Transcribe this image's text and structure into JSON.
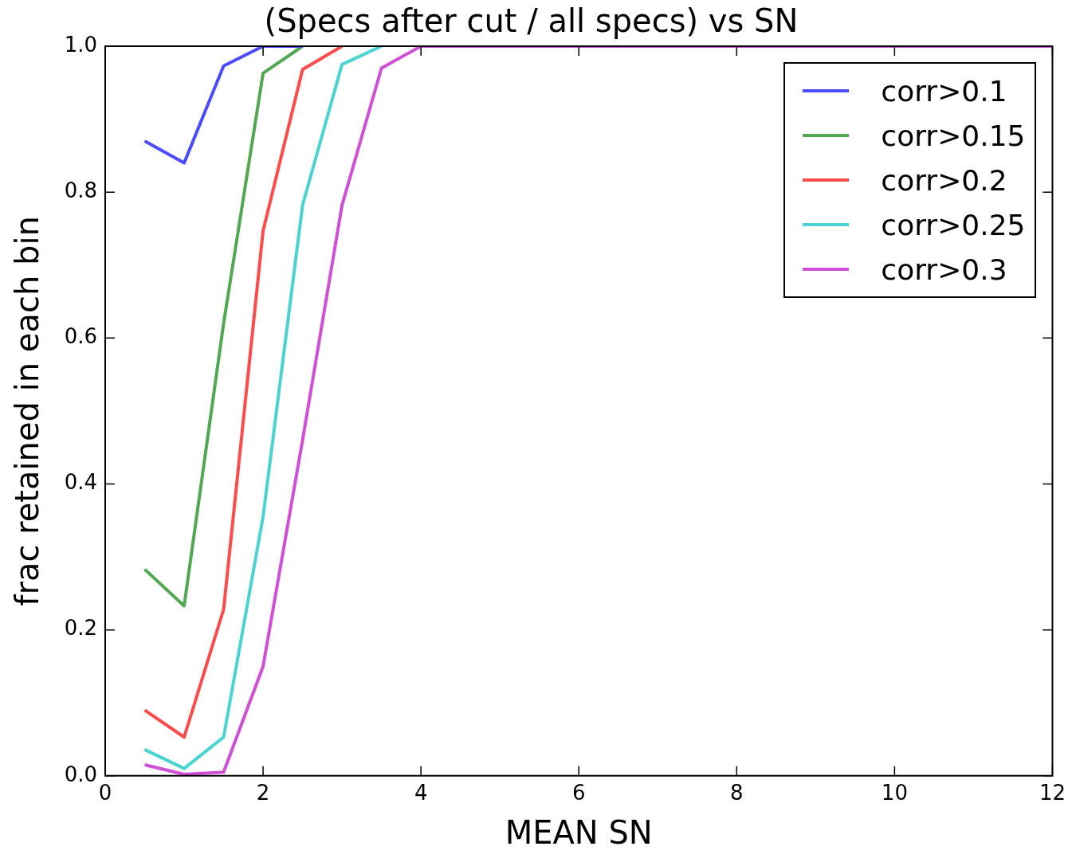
{
  "chart_data": {
    "type": "line",
    "title": "(Specs after cut / all specs) vs SN",
    "xlabel": "MEAN SN",
    "ylabel": "frac retained in each bin",
    "x": [
      0.5,
      1,
      1.5,
      2,
      2.5,
      3,
      3.5,
      4,
      4.5,
      5,
      5.5,
      6,
      6.5,
      7,
      7.5,
      8,
      8.5,
      9,
      9.5,
      10,
      10.5,
      11,
      11.5,
      12
    ],
    "series": [
      {
        "name": "corr>0.1",
        "color": "#4b4bff",
        "values": [
          0.87,
          0.84,
          0.973,
          1,
          1,
          null,
          null,
          null,
          null,
          null,
          null,
          null,
          null,
          null,
          null,
          null,
          null,
          null,
          null,
          null,
          null,
          null,
          null,
          null
        ]
      },
      {
        "name": "corr>0.15",
        "color": "#52a852",
        "values": [
          0.283,
          0.233,
          0.62,
          0.963,
          1,
          null,
          null,
          null,
          null,
          null,
          null,
          null,
          null,
          null,
          null,
          null,
          null,
          null,
          null,
          null,
          null,
          null,
          null,
          null
        ]
      },
      {
        "name": "corr>0.2",
        "color": "#ff4b4b",
        "values": [
          0.09,
          0.053,
          0.228,
          0.747,
          0.968,
          1,
          null,
          null,
          null,
          null,
          null,
          null,
          null,
          null,
          null,
          null,
          null,
          null,
          null,
          null,
          null,
          null,
          null,
          null
        ]
      },
      {
        "name": "corr>0.25",
        "color": "#4bd3d3",
        "values": [
          0.036,
          0.01,
          0.053,
          0.355,
          0.782,
          0.975,
          1,
          null,
          null,
          null,
          null,
          null,
          null,
          null,
          null,
          null,
          null,
          null,
          null,
          null,
          null,
          null,
          null,
          null
        ]
      },
      {
        "name": "corr>0.3",
        "color": "#cf4fd6",
        "values": [
          0.015,
          0.002,
          0.005,
          0.15,
          0.46,
          0.782,
          0.97,
          1,
          1,
          1,
          1,
          1,
          1,
          1,
          1,
          1,
          1,
          1,
          1,
          1,
          1,
          1,
          1,
          1
        ]
      }
    ],
    "xlim": [
      0,
      12
    ],
    "xticks": [
      0,
      2,
      4,
      6,
      8,
      10,
      12
    ],
    "ylim": [
      0,
      1
    ],
    "yticks": [
      {
        "value": 0,
        "label": "0.0"
      },
      {
        "value": 0.2,
        "label": "0.2"
      },
      {
        "value": 0.4,
        "label": "0.4"
      },
      {
        "value": 0.6,
        "label": "0.6"
      },
      {
        "value": 0.8,
        "label": "0.8"
      },
      {
        "value": 1,
        "label": "1.0"
      }
    ],
    "grid": false,
    "legend": "top right",
    "line_style": "solid",
    "marker": "none"
  }
}
